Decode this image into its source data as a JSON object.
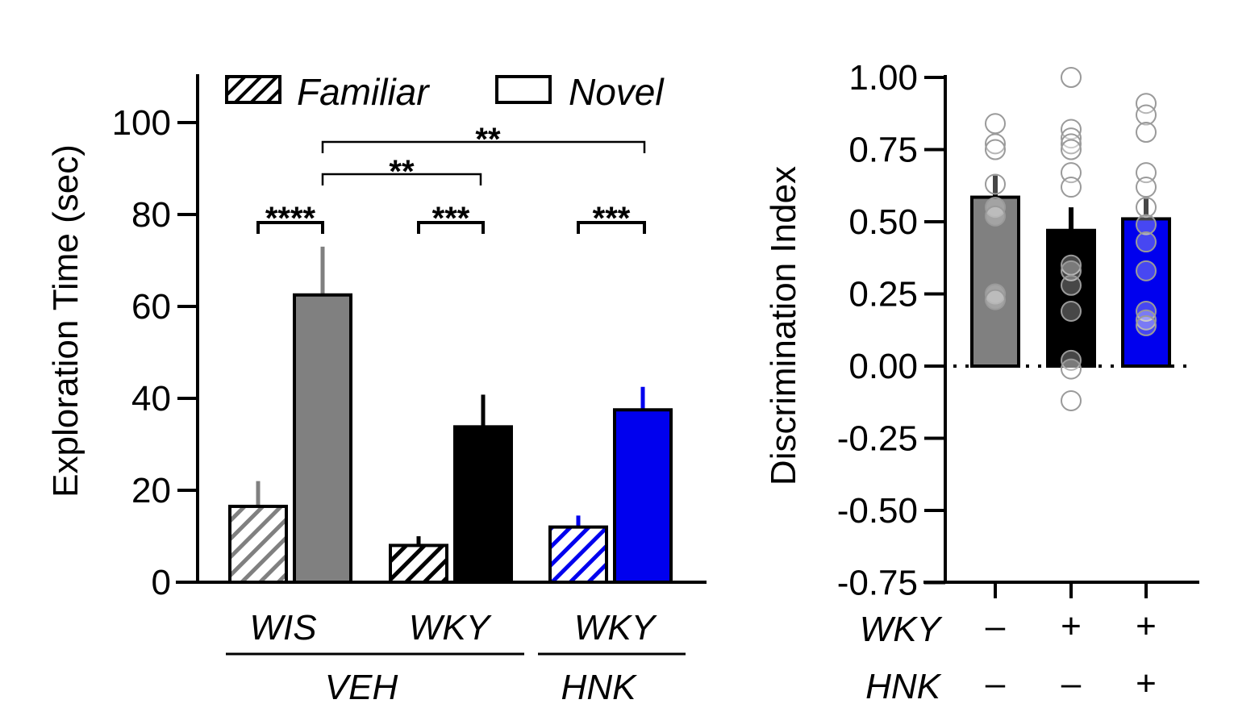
{
  "chart_data": [
    {
      "type": "bar",
      "ylabel": "Exploration Time (sec)",
      "ylim": [
        0,
        110
      ],
      "yticks": [
        "0",
        "20",
        "40",
        "60",
        "80",
        "100"
      ],
      "ytick_values": [
        0,
        20,
        40,
        60,
        80,
        100
      ],
      "legend": {
        "position": "top",
        "entries": [
          {
            "label": "Familiar",
            "pattern": "hatched"
          },
          {
            "label": "Novel",
            "pattern": "solid"
          }
        ]
      },
      "groups": [
        {
          "label": "WIS",
          "color": "#808080",
          "familiar": 16.5,
          "familiar_err": 5.5,
          "novel": 62.5,
          "novel_err": 10.5
        },
        {
          "label": "WKY",
          "color": "#000000",
          "familiar": 8,
          "familiar_err": 2,
          "novel": 33.8,
          "novel_err": 7
        },
        {
          "label": "WKY",
          "color": "#0000ee",
          "familiar": 12,
          "familiar_err": 2.5,
          "novel": 37.5,
          "novel_err": 5
        }
      ],
      "treatments": [
        {
          "label": "VEH",
          "groups": [
            0,
            1
          ]
        },
        {
          "label": "HNK",
          "groups": [
            2
          ]
        }
      ],
      "significance": [
        {
          "text": "****",
          "between": "WIS familiar vs novel"
        },
        {
          "text": "***",
          "between": "WKY VEH familiar vs novel"
        },
        {
          "text": "***",
          "between": "WKY HNK familiar vs novel"
        },
        {
          "text": "**",
          "between": "WIS novel vs WKY VEH novel"
        },
        {
          "text": "**",
          "between": "WIS novel vs WKY HNK novel"
        }
      ]
    },
    {
      "type": "bar",
      "ylabel": "Discrimination Index",
      "ylim": [
        -0.75,
        1.0
      ],
      "yticks": [
        "1.00",
        "0.75",
        "0.50",
        "0.25",
        "0.00",
        "-0.25",
        "-0.50",
        "-0.75"
      ],
      "ytick_values": [
        1.0,
        0.75,
        0.5,
        0.25,
        0.0,
        -0.25,
        -0.5,
        -0.75
      ],
      "reference_line": 0,
      "factors": [
        {
          "label": "WKY",
          "levels": [
            "–",
            "+",
            "+"
          ]
        },
        {
          "label": "HNK",
          "levels": [
            "–",
            "–",
            "+"
          ]
        }
      ],
      "bars": [
        {
          "color": "#808080",
          "value": 0.585,
          "err": 0.075,
          "points": [
            0.84,
            0.77,
            0.75,
            0.63,
            0.55,
            0.52,
            0.25,
            0.23
          ]
        },
        {
          "color": "#000000",
          "value": 0.47,
          "err": 0.08,
          "points": [
            1.0,
            0.82,
            0.79,
            0.77,
            0.75,
            0.67,
            0.62,
            0.35,
            0.33,
            0.28,
            0.19,
            0.02,
            -0.01,
            -0.12
          ]
        },
        {
          "color": "#0000ee",
          "value": 0.51,
          "err": 0.07,
          "points": [
            0.91,
            0.87,
            0.81,
            0.67,
            0.62,
            0.55,
            0.49,
            0.43,
            0.33,
            0.19,
            0.16,
            0.14
          ]
        }
      ]
    }
  ]
}
